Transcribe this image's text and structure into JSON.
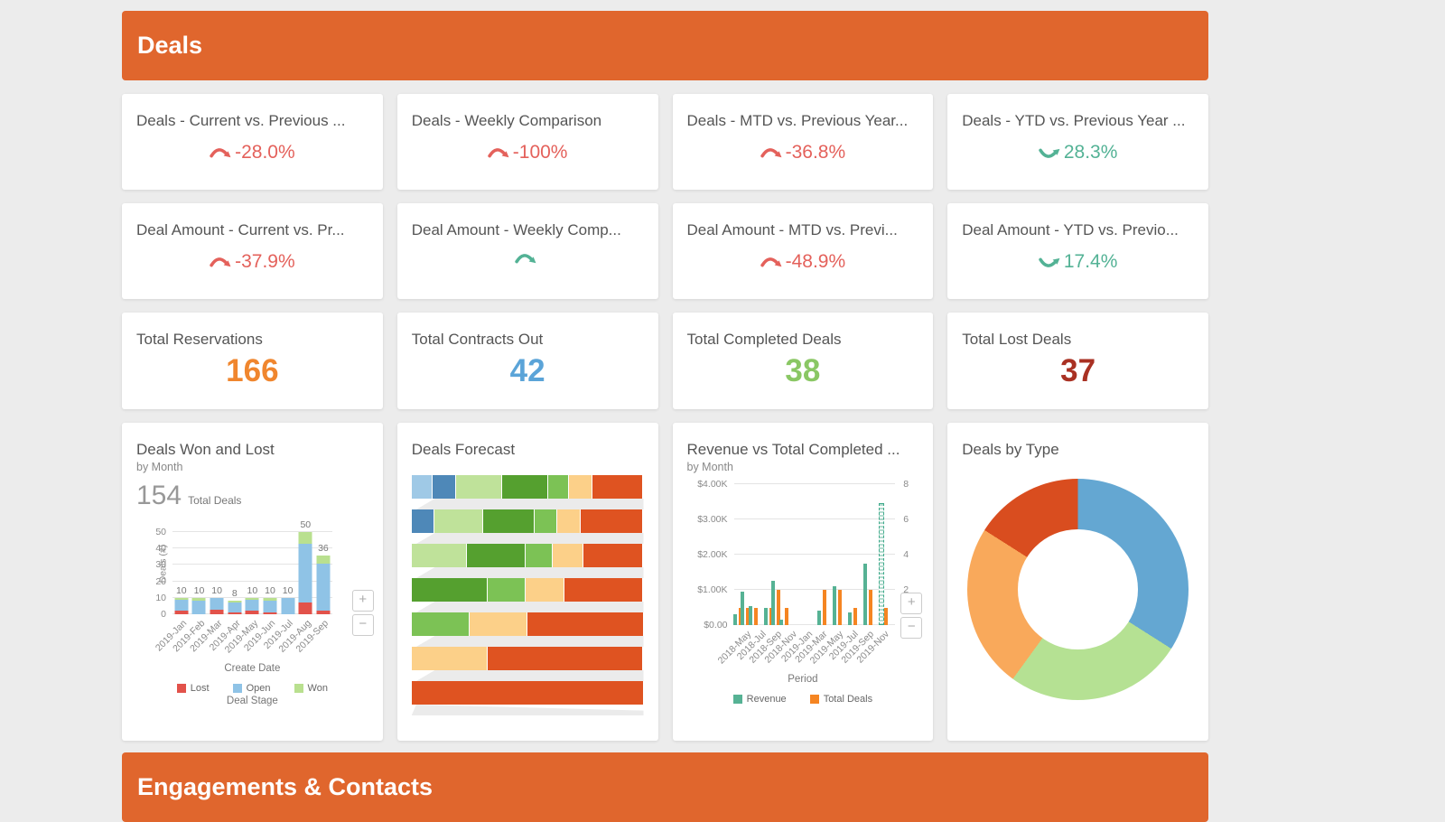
{
  "page": {
    "background": "#ececec"
  },
  "colors": {
    "header_bg": "#e0662d",
    "negative": "#e4615b",
    "positive": "#53b295"
  },
  "section_headers": {
    "deals": "Deals",
    "engagements": "Engagements & Contacts"
  },
  "kpi_cards": [
    {
      "title": "Deals - Current vs. Previous ...",
      "value": "-28.0%",
      "trend": "down",
      "sentiment": "neg"
    },
    {
      "title": "Deals - Weekly Comparison",
      "value": "-100%",
      "trend": "down",
      "sentiment": "neg"
    },
    {
      "title": "Deals - MTD vs. Previous Year...",
      "value": "-36.8%",
      "trend": "down",
      "sentiment": "neg"
    },
    {
      "title": "Deals - YTD vs. Previous Year ...",
      "value": "28.3%",
      "trend": "up",
      "sentiment": "pos"
    },
    {
      "title": "Deal Amount - Current vs. Pr...",
      "value": "-37.9%",
      "trend": "down",
      "sentiment": "neg"
    },
    {
      "title": "Deal Amount - Weekly Comp...",
      "value": "",
      "trend": "down",
      "sentiment": "pos"
    },
    {
      "title": "Deal Amount - MTD vs. Previ...",
      "value": "-48.9%",
      "trend": "down",
      "sentiment": "neg"
    },
    {
      "title": "Deal Amount - YTD vs. Previo...",
      "value": "17.4%",
      "trend": "up",
      "sentiment": "pos"
    }
  ],
  "stat_cards": [
    {
      "title": "Total Reservations",
      "value": "166",
      "color": "#f0862e"
    },
    {
      "title": "Total Contracts Out",
      "value": "42",
      "color": "#5ba4d8"
    },
    {
      "title": "Total Completed Deals",
      "value": "38",
      "color": "#8ac764"
    },
    {
      "title": "Total Lost Deals",
      "value": "37",
      "color": "#a93123"
    }
  ],
  "charts": {
    "won_lost": {
      "type": "stacked-bar",
      "title": "Deals Won and Lost",
      "subtitle": "by Month",
      "total_value": "154",
      "total_label": "Total Deals",
      "y_label": "Deals (#)",
      "x_label": "Create Date",
      "legend_title": "Deal Stage",
      "y_ticks": [
        0,
        10,
        20,
        30,
        40,
        50
      ],
      "y_max": 55,
      "categories": [
        "2019-Jan",
        "2019-Feb",
        "2019-Mar",
        "2019-Apr",
        "2019-May",
        "2019-Jun",
        "2019-Jul",
        "2019-Aug",
        "2019-Sep"
      ],
      "totals": [
        10,
        10,
        10,
        8,
        10,
        10,
        10,
        50,
        36
      ],
      "series": [
        {
          "name": "Lost",
          "color": "#e2524a",
          "values": [
            2,
            0,
            3,
            1,
            2,
            1,
            0,
            7,
            2
          ]
        },
        {
          "name": "Open",
          "color": "#8fc3e6",
          "values": [
            7,
            8,
            7,
            6,
            7,
            7,
            10,
            36,
            29
          ]
        },
        {
          "name": "Won",
          "color": "#b9e08f",
          "values": [
            1,
            2,
            0,
            1,
            1,
            2,
            0,
            7,
            5
          ]
        }
      ]
    },
    "forecast": {
      "type": "funnel",
      "title": "Deals Forecast",
      "palette": {
        "lightblue": "#9fc9e6",
        "blue": "#4e88b8",
        "lightgreen": "#bfe29a",
        "darkgreen": "#55a02f",
        "green": "#7cc255",
        "yellow": "#fcd089",
        "red": "#df5321"
      },
      "rows": [
        [
          [
            "lightblue",
            9
          ],
          [
            "blue",
            10
          ],
          [
            "lightgreen",
            20
          ],
          [
            "darkgreen",
            20
          ],
          [
            "green",
            9
          ],
          [
            "yellow",
            10
          ],
          [
            "red",
            22
          ]
        ],
        [
          [
            "blue",
            10
          ],
          [
            "lightgreen",
            21
          ],
          [
            "darkgreen",
            22
          ],
          [
            "green",
            10
          ],
          [
            "yellow",
            10
          ],
          [
            "red",
            27
          ]
        ],
        [
          [
            "lightgreen",
            24
          ],
          [
            "darkgreen",
            25
          ],
          [
            "green",
            12
          ],
          [
            "yellow",
            13
          ],
          [
            "red",
            26
          ]
        ],
        [
          [
            "darkgreen",
            33
          ],
          [
            "green",
            16
          ],
          [
            "yellow",
            17
          ],
          [
            "red",
            34
          ]
        ],
        [
          [
            "green",
            25
          ],
          [
            "yellow",
            25
          ],
          [
            "red",
            50
          ]
        ],
        [
          [
            "yellow",
            33
          ],
          [
            "red",
            67
          ]
        ],
        [
          [
            "red",
            100
          ]
        ]
      ]
    },
    "revenue": {
      "type": "dual-axis-bar",
      "title": "Revenue vs Total Completed ...",
      "subtitle": "by Month",
      "x_label": "Period",
      "left_ticks": [
        "$0.00",
        "$1.00K",
        "$2.00K",
        "$3.00K",
        "$4.00K"
      ],
      "right_ticks": [
        "0",
        "2",
        "4",
        "6",
        "8"
      ],
      "left_max": 4000,
      "right_max": 8,
      "x_ticks": [
        "2018-May",
        "2018-Jul",
        "2018-Sep",
        "2018-Nov",
        "2019-Jan",
        "2019-Mar",
        "2019-May",
        "2019-Jul",
        "2019-Sep",
        "2019-Nov"
      ],
      "x_tick_months": [
        1,
        3,
        5,
        7,
        9,
        11,
        13,
        15,
        17,
        19
      ],
      "month_span": 21,
      "legend": [
        {
          "name": "Revenue",
          "color": "#56b294"
        },
        {
          "name": "Total Deals",
          "color": "#f58522"
        }
      ],
      "bars": [
        {
          "month": 0,
          "revenue": 300,
          "deals": 1
        },
        {
          "month": 1,
          "revenue": 950,
          "deals": 1
        },
        {
          "month": 2,
          "revenue": 550,
          "deals": 1
        },
        {
          "month": 4,
          "revenue": 500,
          "deals": 1
        },
        {
          "month": 5,
          "revenue": 1250,
          "deals": 2
        },
        {
          "month": 6,
          "revenue": 150,
          "deals": 1
        },
        {
          "month": 11,
          "revenue": 400,
          "deals": 2
        },
        {
          "month": 13,
          "revenue": 1100,
          "deals": 2
        },
        {
          "month": 15,
          "revenue": 350,
          "deals": 1
        },
        {
          "month": 17,
          "revenue": 1750,
          "deals": 2
        },
        {
          "month": 19,
          "revenue": 3450,
          "deals": 1,
          "forecast": true
        }
      ]
    },
    "by_type": {
      "type": "donut",
      "title": "Deals by Type",
      "slices": [
        {
          "color": "#64a7d2",
          "percent": 34
        },
        {
          "color": "#b5e193",
          "percent": 26
        },
        {
          "color": "#f9a95b",
          "percent": 24
        },
        {
          "color": "#d94d1f",
          "percent": 16
        }
      ]
    }
  },
  "zoom_controls": {
    "zoom_in": "+",
    "zoom_out": "−"
  }
}
